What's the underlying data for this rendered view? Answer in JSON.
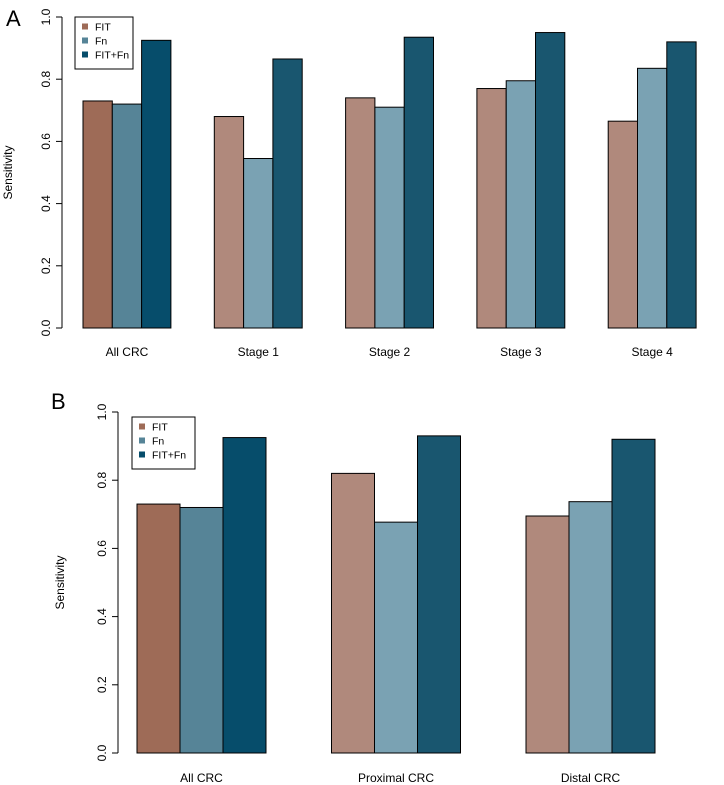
{
  "chart_data": [
    {
      "type": "bar",
      "panel_label": "A",
      "title": "",
      "xlabel": "",
      "ylabel": "Sensitivity",
      "ylim": [
        0,
        1.0
      ],
      "yticks": [
        "0.0",
        "0.2",
        "0.4",
        "0.6",
        "0.8",
        "1.0"
      ],
      "categories": [
        "All CRC",
        "Stage 1",
        "Stage 2",
        "Stage 3",
        "Stage 4"
      ],
      "series": [
        {
          "name": "FIT",
          "values": [
            0.73,
            0.68,
            0.74,
            0.77,
            0.665
          ]
        },
        {
          "name": "Fn",
          "values": [
            0.72,
            0.545,
            0.71,
            0.795,
            0.835
          ]
        },
        {
          "name": "FIT+Fn",
          "values": [
            0.925,
            0.865,
            0.935,
            0.95,
            0.92
          ]
        }
      ],
      "legend_position": "top-left"
    },
    {
      "type": "bar",
      "panel_label": "B",
      "title": "",
      "xlabel": "",
      "ylabel": "Sensitivity",
      "ylim": [
        0,
        1.0
      ],
      "yticks": [
        "0.0",
        "0.2",
        "0.4",
        "0.6",
        "0.8",
        "1.0"
      ],
      "categories": [
        "All CRC",
        "Proximal CRC",
        "Distal CRC"
      ],
      "series": [
        {
          "name": "FIT",
          "values": [
            0.73,
            0.82,
            0.695
          ]
        },
        {
          "name": "Fn",
          "values": [
            0.72,
            0.677,
            0.737
          ]
        },
        {
          "name": "FIT+Fn",
          "values": [
            0.925,
            0.93,
            0.92
          ]
        }
      ],
      "legend_position": "top-left"
    }
  ],
  "colors": {
    "highlight": [
      "#9e6b57",
      "#568497",
      "#064d6b"
    ],
    "muted": [
      "#b0897c",
      "#7aa2b3",
      "#19566f"
    ]
  }
}
